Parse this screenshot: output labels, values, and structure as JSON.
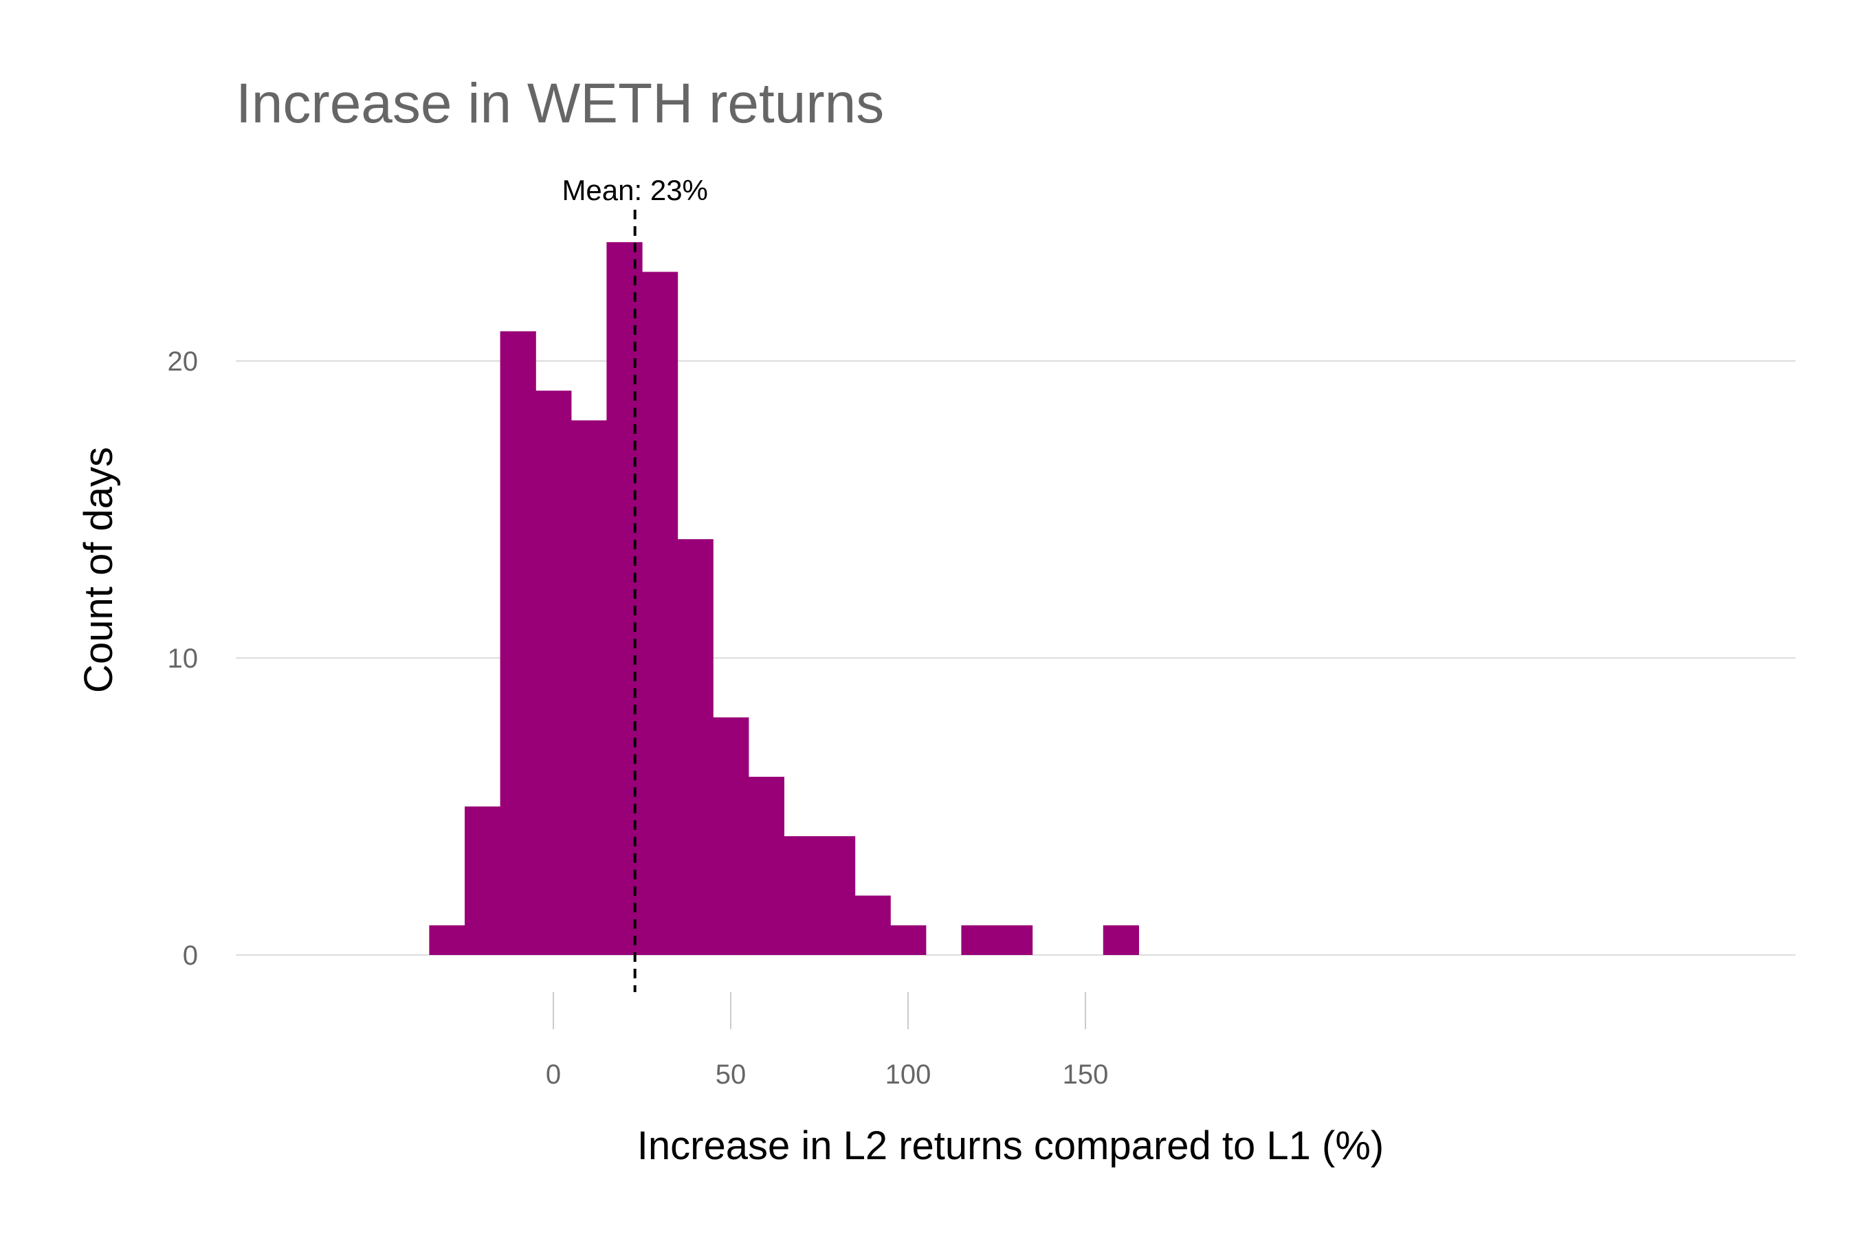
{
  "chart_data": {
    "type": "bar",
    "title": "Increase in WETH returns",
    "xlabel": "Increase in L2 returns compared to L1 (%)",
    "ylabel": "Count of days",
    "bar_color": "#990077",
    "bin_width": 10,
    "bins": [
      {
        "x_start": -35,
        "x_end": -25,
        "count": 1
      },
      {
        "x_start": -25,
        "x_end": -15,
        "count": 5
      },
      {
        "x_start": -15,
        "x_end": -5,
        "count": 21
      },
      {
        "x_start": -5,
        "x_end": 5,
        "count": 19
      },
      {
        "x_start": 5,
        "x_end": 15,
        "count": 18
      },
      {
        "x_start": 15,
        "x_end": 25,
        "count": 24
      },
      {
        "x_start": 25,
        "x_end": 35,
        "count": 23
      },
      {
        "x_start": 35,
        "x_end": 45,
        "count": 14
      },
      {
        "x_start": 45,
        "x_end": 55,
        "count": 8
      },
      {
        "x_start": 55,
        "x_end": 65,
        "count": 6
      },
      {
        "x_start": 65,
        "x_end": 75,
        "count": 4
      },
      {
        "x_start": 75,
        "x_end": 85,
        "count": 4
      },
      {
        "x_start": 85,
        "x_end": 95,
        "count": 2
      },
      {
        "x_start": 95,
        "x_end": 105,
        "count": 1
      },
      {
        "x_start": 105,
        "x_end": 115,
        "count": 0
      },
      {
        "x_start": 115,
        "x_end": 125,
        "count": 1
      },
      {
        "x_start": 125,
        "x_end": 135,
        "count": 1
      },
      {
        "x_start": 135,
        "x_end": 145,
        "count": 0
      },
      {
        "x_start": 145,
        "x_end": 155,
        "count": 0
      },
      {
        "x_start": 155,
        "x_end": 165,
        "count": 1
      }
    ],
    "xlim": [
      -45,
      175
    ],
    "ylim": [
      0,
      24.5
    ],
    "x_ticks": [
      0,
      50,
      100,
      150
    ],
    "x_tick_labels": [
      "0",
      "50",
      "100",
      "150"
    ],
    "y_ticks": [
      0,
      10,
      20
    ],
    "y_tick_labels": [
      "0",
      "10",
      "20"
    ],
    "grid": "horizontal",
    "mean": {
      "value": 23,
      "label": "Mean: 23%",
      "line_style": "dashed",
      "color": "#000000"
    }
  }
}
